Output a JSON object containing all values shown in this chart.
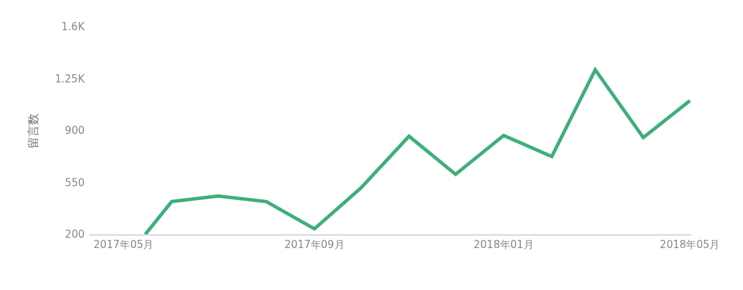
{
  "chart_data": {
    "type": "line",
    "ylabel": "留言数",
    "x": [
      "2017-05-15",
      "2017-06",
      "2017-07",
      "2017-08",
      "2017-09",
      "2017-10",
      "2017-11",
      "2017-12",
      "2018-01",
      "2018-02",
      "2018-03",
      "2018-04",
      "2018-05"
    ],
    "series": [
      {
        "color": "#3daf7a",
        "values": [
          200,
          421,
          458,
          421,
          237,
          513,
          862,
          605,
          867,
          725,
          1310,
          853,
          1102
        ]
      }
    ],
    "xlim": [
      "2017-04-09",
      "2018-05-02"
    ],
    "xticks": [
      {
        "value": "2017-05",
        "label": "2017年05月"
      },
      {
        "value": "2017-09",
        "label": "2017年09月"
      },
      {
        "value": "2018-01",
        "label": "2018年01月"
      },
      {
        "value": "2018-05",
        "label": "2018年05月"
      }
    ],
    "ylim": [
      200,
      1600
    ],
    "yticks": [
      200,
      550,
      900,
      {
        "value": 1250,
        "label": "1.25K"
      },
      {
        "value": 1600,
        "label": "1.6K"
      }
    ],
    "grid": false,
    "marker": "none",
    "line_style": "solid"
  }
}
